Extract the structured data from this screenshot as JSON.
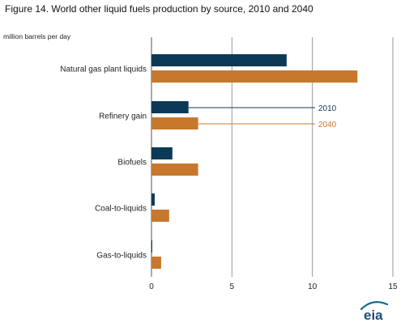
{
  "title": "Figure 14. World other liquid fuels production by source, 2010 and 2040",
  "units_label": "million barrels per day",
  "logo_text": "eia",
  "colors": {
    "s2010": "#0c3a56",
    "s2040": "#c8782d",
    "grid": "#9a9a9a",
    "axis": "#555555"
  },
  "chart_data": {
    "type": "bar",
    "orientation": "horizontal",
    "categories": [
      "Natural gas plant liquids",
      "Refinery gain",
      "Biofuels",
      "Coal-to-liquids",
      "Gas-to-liquids"
    ],
    "series": [
      {
        "name": "2010",
        "values": [
          8.4,
          2.3,
          1.3,
          0.2,
          0.05
        ]
      },
      {
        "name": "2040",
        "values": [
          12.8,
          2.9,
          2.9,
          1.1,
          0.6
        ]
      }
    ],
    "xlim": [
      0,
      15
    ],
    "xticks": [
      0,
      5,
      10,
      15
    ],
    "grid": true,
    "legend": "inline labels to the right of the Refinery gain bars"
  }
}
